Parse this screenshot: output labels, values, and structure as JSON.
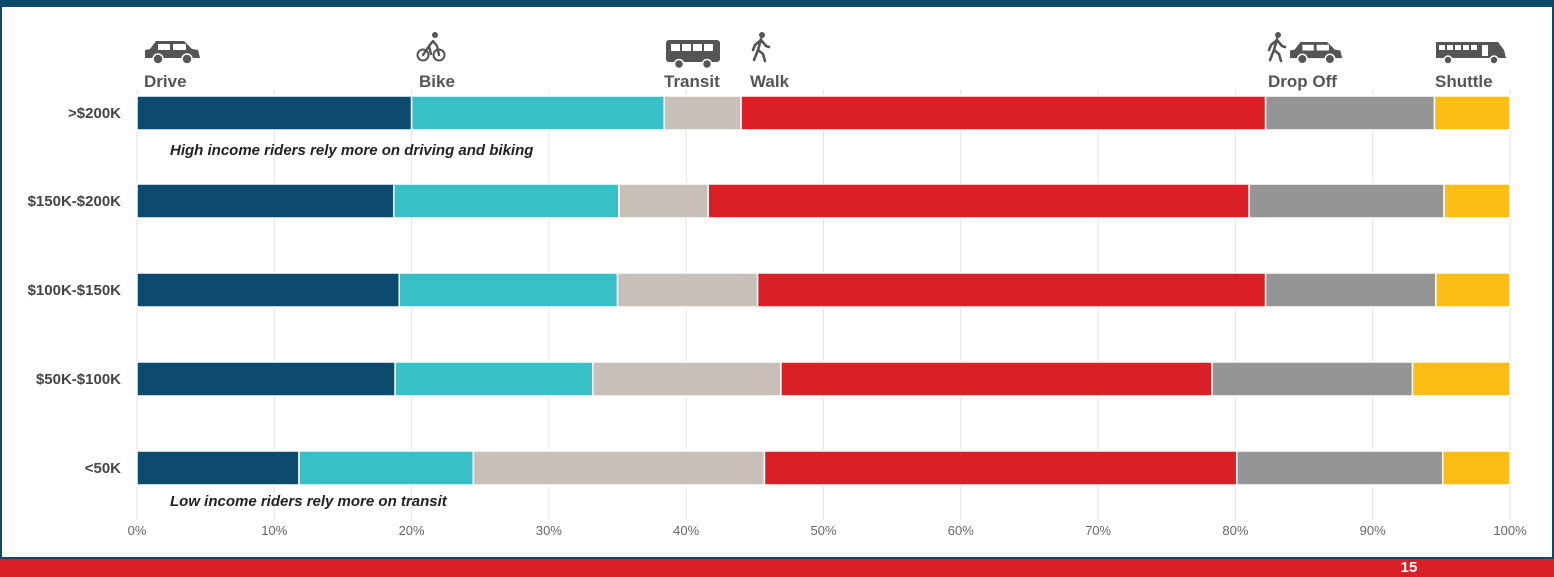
{
  "chart_data": {
    "type": "bar",
    "orientation": "horizontal",
    "stacked": true,
    "categories": [
      ">$200K",
      "$150K-$200K",
      "$100K-$150K",
      "$50K-$100K",
      "<50K"
    ],
    "series": [
      {
        "name": "Drive",
        "icon": "car-icon",
        "color": "#0c4a6e",
        "values": [
          20.0,
          18.7,
          19.1,
          18.8,
          11.8
        ]
      },
      {
        "name": "Bike",
        "icon": "bicycle-rider-icon",
        "color": "#37c0c8",
        "values": [
          18.4,
          16.4,
          15.9,
          14.4,
          12.7
        ]
      },
      {
        "name": "Transit",
        "icon": "bus-icon",
        "color": "#c7bfb8",
        "values": [
          5.6,
          6.5,
          10.2,
          13.7,
          21.2
        ]
      },
      {
        "name": "Walk",
        "icon": "walking-person-icon",
        "color": "#da1f26",
        "values": [
          38.2,
          39.4,
          37.0,
          31.4,
          34.4
        ]
      },
      {
        "name": "Drop Off",
        "icon": "walker-and-car-icon",
        "color": "#959595",
        "values": [
          12.3,
          14.2,
          12.4,
          14.6,
          15.0
        ]
      },
      {
        "name": "Shuttle",
        "icon": "shuttle-icon",
        "color": "#fdbd14",
        "values": [
          5.5,
          4.8,
          5.4,
          7.1,
          4.9
        ]
      }
    ],
    "xlim": [
      0,
      100
    ],
    "x_ticks": [
      "0%",
      "10%",
      "20%",
      "30%",
      "40%",
      "50%",
      "60%",
      "70%",
      "80%",
      "90%",
      "100%"
    ],
    "grid": "vertical",
    "legend": "top, icon labels above the bars",
    "annotations": [
      {
        "text": "High income riders rely more on driving and biking",
        "near": ">$200K"
      },
      {
        "text": "Low income riders rely more on transit",
        "near": "<50K"
      }
    ]
  },
  "page": {
    "number": "15",
    "accent_color": "#da1f26",
    "border_color": "#0c4a6a"
  }
}
